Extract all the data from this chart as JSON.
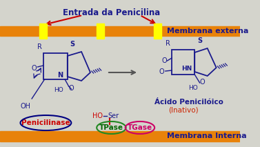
{
  "bg_color": "#d4d4cc",
  "membrane_color": "#e8820a",
  "channel_color": "#ffff00",
  "title": "Entrada da Penicilina",
  "title_color": "#1a1a8c",
  "title_fontsize": 8.5,
  "membrana_externa_text": "Membrana externa",
  "membrana_interna_text": "Membrana Interna",
  "membrana_fontsize": 8,
  "membrana_color": "#1a1a8c",
  "acido_text": "Ácido Penicilóico",
  "inativo_text": "(Inativo)",
  "inativo_color": "#cc2200",
  "penicilinase_text": "Penicilinase",
  "penicilinase_color": "#cc0000",
  "penicilinase_border": "#000080",
  "tpase_text": "TPase",
  "tpase_color": "#006600",
  "tpase_border": "#228822",
  "tgase_text": "TGase",
  "tgase_color": "#cc0066",
  "tgase_border": "#cc0066",
  "arrow_color_red": "#cc0000",
  "dark": "#1a1a8c",
  "mol_dark": "#1a1a8c",
  "arrow_gray": "#555555",
  "ser_line_color": "#cc0000",
  "ho_color": "#cc0000"
}
